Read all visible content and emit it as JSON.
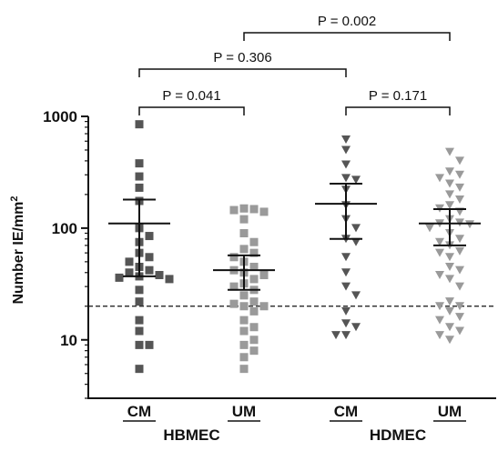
{
  "chart_data": {
    "type": "scatter",
    "ylabel": "Number IE/mm",
    "ylabel_superscript": "2",
    "y_scale": "log",
    "ylim": [
      3,
      1000
    ],
    "yticks": [
      {
        "value": 10,
        "label": "10"
      },
      {
        "value": 100,
        "label": "100"
      },
      {
        "value": 1000,
        "label": "1000"
      }
    ],
    "reference_line": {
      "value": 20,
      "style": "dashed"
    },
    "categories": [
      "CM",
      "UM",
      "CM",
      "UM"
    ],
    "groups": [
      {
        "label": "HBMEC",
        "categories": [
          0,
          1
        ]
      },
      {
        "label": "HDMEC",
        "categories": [
          2,
          3
        ]
      }
    ],
    "series": [
      {
        "category": "CM",
        "group": "HBMEC",
        "marker": "square",
        "color": "#555555",
        "mean": 110,
        "ci": [
          37,
          180
        ],
        "values": [
          850,
          380,
          290,
          230,
          175,
          100,
          85,
          75,
          60,
          55,
          50,
          45,
          42,
          40,
          38,
          37,
          36,
          35,
          28,
          22,
          15,
          12,
          9,
          9,
          5.5
        ]
      },
      {
        "category": "UM",
        "group": "HBMEC",
        "marker": "square",
        "color": "#9a9a9a",
        "mean": 42,
        "ci": [
          28,
          57
        ],
        "values": [
          150,
          148,
          145,
          140,
          120,
          90,
          75,
          65,
          60,
          55,
          50,
          45,
          42,
          40,
          38,
          35,
          32,
          30,
          28,
          25,
          22,
          21,
          20,
          20,
          18,
          15,
          13,
          12,
          10,
          9,
          8,
          7,
          5.5
        ]
      },
      {
        "category": "CM",
        "group": "HDMEC",
        "marker": "triangle",
        "color": "#555555",
        "mean": 165,
        "ci": [
          80,
          250
        ],
        "values": [
          620,
          500,
          370,
          280,
          270,
          220,
          160,
          120,
          100,
          80,
          75,
          55,
          40,
          30,
          25,
          18,
          14,
          13,
          11,
          11
        ]
      },
      {
        "category": "UM",
        "group": "HDMEC",
        "marker": "triangle",
        "color": "#9a9a9a",
        "mean": 110,
        "ci": [
          70,
          148
        ],
        "values": [
          480,
          400,
          320,
          300,
          280,
          250,
          230,
          200,
          180,
          160,
          150,
          140,
          120,
          112,
          110,
          108,
          100,
          90,
          80,
          75,
          70,
          62,
          60,
          55,
          45,
          42,
          38,
          35,
          30,
          22,
          20,
          20,
          18,
          16,
          15,
          13,
          12,
          11,
          10
        ]
      }
    ],
    "comparisons": [
      {
        "from": 0,
        "to": 1,
        "label": "P = 0.041",
        "level": 1
      },
      {
        "from": 2,
        "to": 3,
        "label": "P = 0.171",
        "level": 1
      },
      {
        "from": 0,
        "to": 2,
        "label": "P = 0.306",
        "level": 2
      },
      {
        "from": 1,
        "to": 3,
        "label": "P = 0.002",
        "level": 3
      }
    ]
  }
}
